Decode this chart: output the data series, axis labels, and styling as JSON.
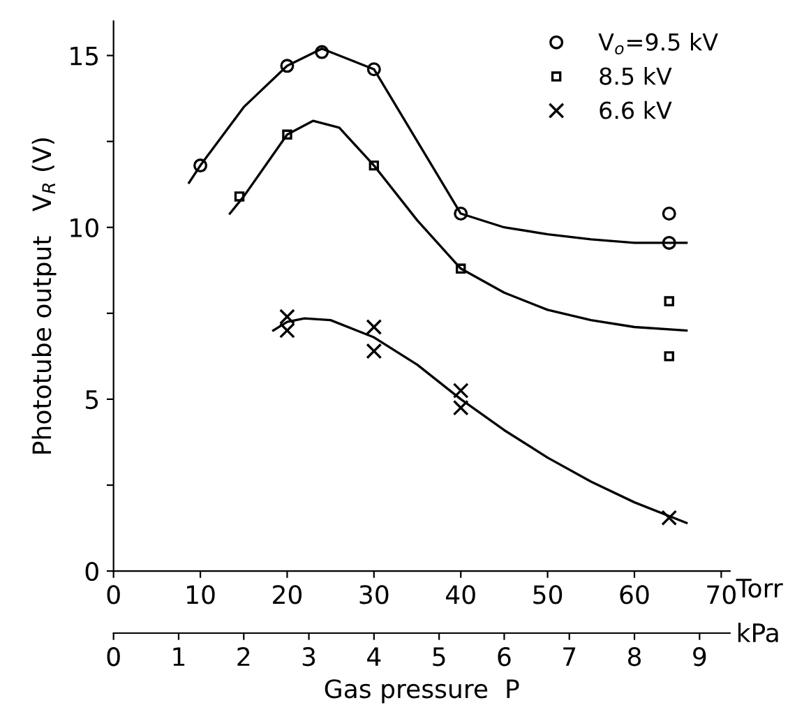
{
  "chart_data": {
    "type": "scatter",
    "xlabel": "Torr",
    "x2label": "kPa",
    "ylabel": "Phototube output   V$_{R}$ (V)",
    "annotations": [
      "Gas pressure  P"
    ],
    "series": [
      {
        "name": "V$_{o}$=9.5 kV",
        "color": "#000000",
        "marker": "circle",
        "x": [
          10,
          20,
          24,
          30,
          40,
          64,
          64
        ],
        "values": [
          11.8,
          14.7,
          15.1,
          14.6,
          10.4,
          10.4,
          9.55
        ]
      },
      {
        "name": "8.5 kV",
        "color": "#000000",
        "marker": "square",
        "x": [
          14.5,
          20,
          30,
          40,
          64,
          64
        ],
        "values": [
          10.9,
          12.7,
          11.8,
          8.8,
          7.85,
          6.25
        ]
      },
      {
        "name": "6.6 kV",
        "color": "#000000",
        "marker": "cross",
        "x": [
          20,
          20,
          30,
          30,
          40,
          40,
          64
        ],
        "values": [
          7.4,
          7.0,
          7.1,
          6.4,
          5.25,
          4.75,
          1.55
        ]
      },
      {
        "type": "line",
        "color": "#000000",
        "x": [
          8.7,
          10,
          15,
          20,
          24,
          30,
          35,
          40,
          45,
          50,
          55,
          60,
          66
        ],
        "values": [
          11.3,
          11.8,
          13.5,
          14.7,
          15.2,
          14.6,
          12.5,
          10.4,
          10.0,
          9.8,
          9.65,
          9.55,
          9.55
        ]
      },
      {
        "type": "line",
        "color": "#000000",
        "x": [
          13.4,
          15,
          20,
          23,
          26,
          30,
          35,
          40,
          45,
          50,
          55,
          60,
          66
        ],
        "values": [
          10.4,
          10.9,
          12.7,
          13.1,
          12.9,
          11.8,
          10.2,
          8.8,
          8.1,
          7.6,
          7.3,
          7.1,
          7.0
        ]
      },
      {
        "type": "line",
        "color": "#000000",
        "x": [
          18.4,
          20,
          22,
          25,
          30,
          35,
          40,
          45,
          50,
          55,
          60,
          66
        ],
        "values": [
          7.0,
          7.25,
          7.35,
          7.3,
          6.8,
          6.0,
          5.0,
          4.1,
          3.3,
          2.6,
          2.0,
          1.4
        ]
      }
    ],
    "xlim": [
      0,
      71
    ],
    "xticks": [
      0,
      10,
      20,
      30,
      40,
      50,
      60,
      70
    ],
    "x2lim": [
      0,
      9.466
    ],
    "x2ticks": [
      0,
      1,
      2,
      3,
      4,
      5,
      6,
      7,
      8,
      9
    ],
    "ylim": [
      0,
      16
    ],
    "yticks": [
      0,
      {
        "value": 2.5,
        "label": null
      },
      5,
      {
        "value": 7.5,
        "label": null
      },
      10,
      {
        "value": 12.5,
        "label": null
      },
      15
    ],
    "legend": "top right",
    "grid": false
  }
}
